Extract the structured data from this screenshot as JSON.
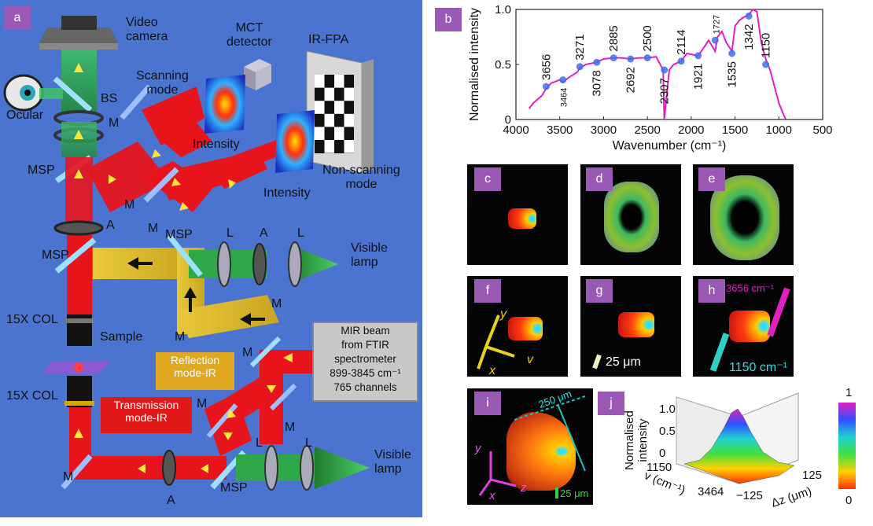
{
  "panel_labels": {
    "a": "a",
    "b": "b",
    "c": "c",
    "d": "d",
    "e": "e",
    "f": "f",
    "g": "g",
    "h": "h",
    "i": "i",
    "j": "j"
  },
  "setup": {
    "video_camera": "Video\ncamera",
    "mct_detector": "MCT\ndetector",
    "ir_fpa": "IR-FPA",
    "scanning_mode": "Scanning\nmode",
    "non_scanning_mode": "Non-scanning\nmode",
    "intensity": "Intensity",
    "ocular": "Ocular",
    "bs": "BS",
    "m": "M",
    "msp": "MSP",
    "a": "A",
    "l": "L",
    "visible_lamp": "Visible\nlamp",
    "col": "15X COL",
    "sample": "Sample",
    "reflection_mode": "Reflection\nmode-IR",
    "transmission_mode": "Transmission\nmode-IR",
    "mir_box": "MIR beam\nfrom FTIR\nspectrometer\n899-3845 cm⁻¹\n765 channels"
  },
  "chart_data": {
    "type": "line",
    "xlabel": "Wavenumber (cm⁻¹)",
    "ylabel": "Normalised intensity",
    "xlim": [
      4000,
      500
    ],
    "ylim": [
      0,
      1.0
    ],
    "xticks": [
      "4000",
      "3500",
      "3000",
      "2500",
      "2000",
      "1500",
      "1000",
      "500"
    ],
    "yticks": [
      "0",
      "0.5",
      "1.0"
    ],
    "line_color": "#e020c0",
    "marker_color": "#3f6fe8",
    "x": [
      3850,
      3800,
      3700,
      3656,
      3600,
      3500,
      3464,
      3400,
      3300,
      3271,
      3200,
      3078,
      3000,
      2885,
      2800,
      2692,
      2600,
      2500,
      2400,
      2320,
      2307,
      2250,
      2200,
      2114,
      2050,
      1921,
      1850,
      1800,
      1727,
      1700,
      1650,
      1600,
      1535,
      1500,
      1450,
      1400,
      1342,
      1300,
      1250,
      1200,
      1150,
      1100,
      1050,
      1000,
      950,
      920
    ],
    "y": [
      0.1,
      0.15,
      0.22,
      0.28,
      0.33,
      0.36,
      0.34,
      0.38,
      0.43,
      0.47,
      0.5,
      0.52,
      0.55,
      0.56,
      0.56,
      0.55,
      0.56,
      0.56,
      0.57,
      0.45,
      0.0,
      0.45,
      0.5,
      0.53,
      0.6,
      0.58,
      0.66,
      0.72,
      0.62,
      0.75,
      0.8,
      0.7,
      0.62,
      0.85,
      0.9,
      0.93,
      0.95,
      1.0,
      0.98,
      0.7,
      0.55,
      0.45,
      0.3,
      0.15,
      0.05,
      0.0
    ],
    "annotations": [
      {
        "text": "3656",
        "x": 3656,
        "y": 0.3,
        "rotated": true
      },
      {
        "text": "3464",
        "x": 3464,
        "y": 0.36,
        "rotated": true,
        "below": true
      },
      {
        "text": "3271",
        "x": 3271,
        "y": 0.48,
        "rotated": true
      },
      {
        "text": "3078",
        "x": 3078,
        "y": 0.52,
        "rotated": true,
        "below": true
      },
      {
        "text": "2885",
        "x": 2885,
        "y": 0.56,
        "rotated": true
      },
      {
        "text": "2692",
        "x": 2692,
        "y": 0.55,
        "rotated": true,
        "below": true
      },
      {
        "text": "2500",
        "x": 2500,
        "y": 0.56,
        "rotated": true
      },
      {
        "text": "2307",
        "x": 2307,
        "y": 0.45,
        "rotated": true,
        "below": true
      },
      {
        "text": "2114",
        "x": 2114,
        "y": 0.53,
        "rotated": true
      },
      {
        "text": "1921",
        "x": 1921,
        "y": 0.58,
        "rotated": true,
        "below": true
      },
      {
        "text": "1727",
        "x": 1727,
        "y": 0.72,
        "rotated": true
      },
      {
        "text": "1535",
        "x": 1535,
        "y": 0.6,
        "rotated": true,
        "below": true
      },
      {
        "text": "1342",
        "x": 1342,
        "y": 0.94,
        "rotated": true,
        "below": true
      },
      {
        "text": "1150",
        "x": 1150,
        "y": 0.5,
        "rotated": true
      }
    ]
  },
  "scale_labels": {
    "g": "25 μm",
    "h_top": "3656 cm⁻¹",
    "h_bottom": "1150 cm⁻¹",
    "i_top": "250 μm",
    "i_bottom": "25 μm"
  },
  "axes_labels": {
    "x": "x",
    "y": "y",
    "v": "v",
    "z": "z"
  },
  "plot_j": {
    "zlabel": "Normalised\nintensity",
    "zticks": [
      "0",
      "0.5",
      "1.0"
    ],
    "v_label": "v (cm⁻¹)",
    "v_ticks": [
      "1150",
      "3464"
    ],
    "dz_label": "Δz (μm)",
    "dz_ticks": [
      "−125",
      "125"
    ]
  },
  "colorbar": {
    "max": "1",
    "min": "0"
  }
}
